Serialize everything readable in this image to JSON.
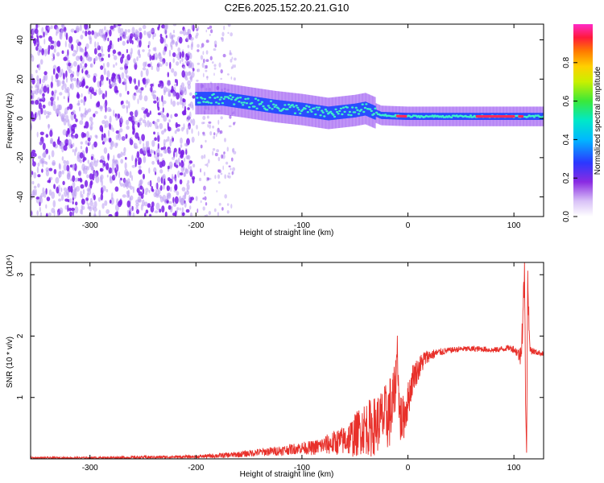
{
  "title": "C2E6.2025.152.20.21.G10",
  "colors": {
    "snr_line": "#e8302a",
    "noise_low": "#b99bf2",
    "noise_high": "#7a1ee8",
    "track_core": "#3ff0c8",
    "track_hot": "#ff2a5a"
  },
  "chart_data": [
    {
      "type": "heatmap",
      "xlabel": "Height of straight line (km)",
      "ylabel": "Frequency (Hz)",
      "xlim": [
        -356,
        128
      ],
      "ylim": [
        -50,
        48
      ],
      "x_ticks": [
        -300,
        -200,
        -100,
        0,
        100
      ],
      "y_ticks": [
        -40,
        -20,
        0,
        20,
        40
      ],
      "colorbar": {
        "label": "Normalized spectral amplitude",
        "range": [
          0,
          1
        ],
        "ticks": [
          0.0,
          0.2,
          0.4,
          0.6,
          0.8
        ],
        "colormap": "rainbow: white, purple, blue, cyan, green, yellow, orange, red, magenta"
      },
      "noise_region_km": [
        -356,
        -202
      ],
      "sparse_noise_region_km": [
        -200,
        -163
      ],
      "track_center_hz": [
        [
          -200,
          10
        ],
        [
          -175,
          10
        ],
        [
          -150,
          8
        ],
        [
          -125,
          6
        ],
        [
          -100,
          4.5
        ],
        [
          -75,
          2.5
        ],
        [
          -50,
          4
        ],
        [
          -40,
          5
        ],
        [
          -25,
          1.5
        ],
        [
          0,
          1
        ],
        [
          50,
          1
        ],
        [
          100,
          1
        ],
        [
          110,
          1
        ],
        [
          128,
          1
        ]
      ],
      "track_peak_amplitude_km": [
        [
          -200,
          0.35
        ],
        [
          -150,
          0.4
        ],
        [
          -100,
          0.45
        ],
        [
          -50,
          0.5
        ],
        [
          -30,
          0.55
        ],
        [
          0,
          0.65
        ],
        [
          60,
          0.75
        ],
        [
          75,
          0.95
        ],
        [
          100,
          0.95
        ],
        [
          128,
          0.5
        ]
      ]
    },
    {
      "type": "line",
      "xlabel": "Height of straight line (km)",
      "ylabel": "SNR (10 * v/v)",
      "scale_label": "(x10⁴)",
      "xlim": [
        -356,
        128
      ],
      "ylim": [
        0,
        3.2
      ],
      "x_ticks": [
        -300,
        -200,
        -100,
        0,
        100
      ],
      "y_ticks": [
        1,
        2,
        3
      ],
      "series": [
        {
          "x": [
            -356,
            -300,
            -250,
            -200,
            -180,
            -160,
            -140,
            -120,
            -100,
            -90,
            -80,
            -70,
            -60,
            -50,
            -45,
            -40,
            -35,
            -30,
            -25,
            -20,
            -15,
            -12,
            -10,
            -8,
            -5,
            0,
            5,
            10,
            15,
            20,
            30,
            40,
            50,
            60,
            70,
            80,
            90,
            95,
            100,
            103,
            106,
            108,
            110,
            111,
            112,
            113,
            115,
            120,
            128
          ],
          "y": [
            0.02,
            0.02,
            0.03,
            0.04,
            0.06,
            0.08,
            0.12,
            0.15,
            0.2,
            0.2,
            0.25,
            0.3,
            0.35,
            0.45,
            0.55,
            0.6,
            0.6,
            0.65,
            0.75,
            0.8,
            0.95,
            1.2,
            1.9,
            0.8,
            0.7,
            1.0,
            1.4,
            1.5,
            1.65,
            1.7,
            1.75,
            1.78,
            1.8,
            1.8,
            1.8,
            1.78,
            1.8,
            1.82,
            1.8,
            1.75,
            1.7,
            2.2,
            3.1,
            1.0,
            0.15,
            3.0,
            1.8,
            1.75,
            1.72
          ],
          "noise_amplitude": [
            0.02,
            0.02,
            0.03,
            0.03,
            0.05,
            0.06,
            0.08,
            0.1,
            0.12,
            0.15,
            0.18,
            0.25,
            0.3,
            0.45,
            0.5,
            0.55,
            0.6,
            0.6,
            0.6,
            0.7,
            0.8,
            0.5,
            0.3,
            0.6,
            0.5,
            0.4,
            0.3,
            0.25,
            0.2,
            0.12,
            0.08,
            0.06,
            0.06,
            0.06,
            0.06,
            0.06,
            0.06,
            0.06,
            0.08,
            0.1,
            0.2,
            0.4,
            0.3,
            0.2,
            0.1,
            0.3,
            0.1,
            0.06,
            0.05
          ]
        }
      ]
    }
  ]
}
